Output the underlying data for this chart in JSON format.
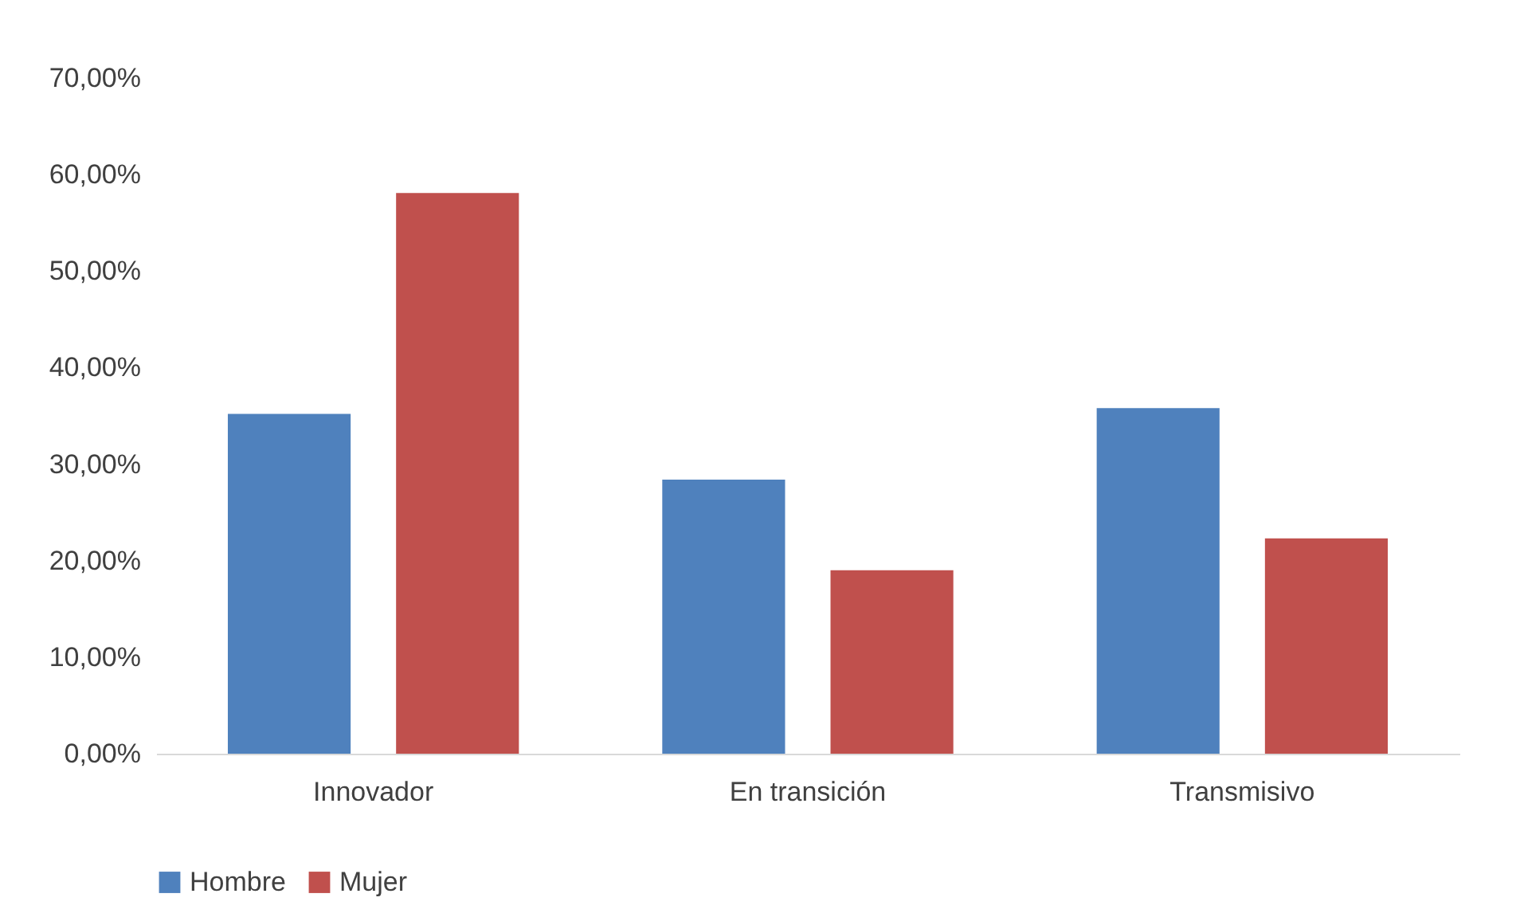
{
  "chart_data": {
    "type": "bar",
    "categories": [
      "Innovador",
      "En transición",
      "Transmisivo"
    ],
    "series": [
      {
        "name": "Hombre",
        "color": "#4f81bd",
        "values": [
          35.2,
          28.4,
          35.8
        ]
      },
      {
        "name": "Mujer",
        "color": "#c0504d",
        "values": [
          58.1,
          19.0,
          22.3
        ]
      }
    ],
    "ylim": [
      0,
      70
    ],
    "yticks": [
      {
        "value": 0,
        "label": "0,00%"
      },
      {
        "value": 10,
        "label": "10,00%"
      },
      {
        "value": 20,
        "label": "20,00%"
      },
      {
        "value": 30,
        "label": "30,00%"
      },
      {
        "value": 40,
        "label": "40,00%"
      },
      {
        "value": 50,
        "label": "50,00%"
      },
      {
        "value": 60,
        "label": "60,00%"
      },
      {
        "value": 70,
        "label": "70,00%"
      }
    ],
    "grid": false,
    "legend": "bottom"
  }
}
